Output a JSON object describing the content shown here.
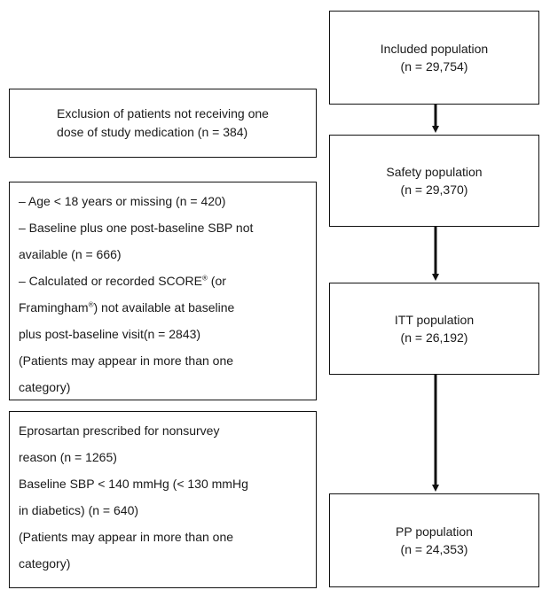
{
  "population_boxes": [
    {
      "label": "Included population",
      "count": "(n = 29,754)"
    },
    {
      "label": "Safety population",
      "count": "(n = 29,370)"
    },
    {
      "label": "ITT population",
      "count": "(n = 26,192)"
    },
    {
      "label": "PP population",
      "count": "(n = 24,353)"
    }
  ],
  "exclusion_1": {
    "line1": "Exclusion of patients not receiving one",
    "line2": "dose of study medication (n = 384)"
  },
  "exclusion_2": {
    "line1": "– Age < 18 years or missing (n = 420)",
    "line2": "– Baseline plus one post-baseline SBP not",
    "line3": "available (n = 666)",
    "line4_pre": "– Calculated or recorded SCORE",
    "line4_sup": "®",
    "line4_post": " (or",
    "line5_pre": "Framingham",
    "line5_sup": "®",
    "line5_post": ") not available at baseline",
    "line6": "plus post-baseline visit(n = 2843)",
    "line7": "(Patients may appear in more than one",
    "line8": "category)"
  },
  "exclusion_3": {
    "line1": "Eprosartan prescribed for nonsurvey",
    "line2": "reason (n = 1265)",
    "line3": "Baseline SBP < 140 mmHg (< 130 mmHg",
    "line4": "in diabetics) (n = 640)",
    "line5": "(Patients may appear in more than one",
    "line6": "category)"
  }
}
